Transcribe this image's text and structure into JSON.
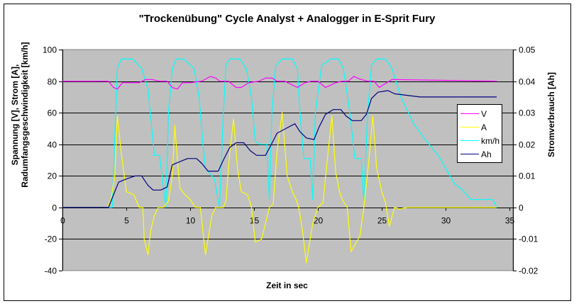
{
  "chart": {
    "title": "\"Trockenübung\" Cycle Analyst + Analogger in E-Sprit Fury",
    "ylabel_left_line1": "Spannung [V], Strom [A],",
    "ylabel_left_line2": "Radumfangsgeschwindigkeit [km/h]",
    "ylabel_right": "Stromverbrauch [Ah]",
    "xlabel": "Zeit in sec",
    "legend": [
      {
        "label": "V",
        "color": "#FF00FF"
      },
      {
        "label": "A",
        "color": "#FFFF00"
      },
      {
        "label": "km/h",
        "color": "#00FFFF"
      },
      {
        "label": "Ah",
        "color": "#000080"
      }
    ],
    "plot_background": "#C0C0C0"
  },
  "chart_data": {
    "type": "line",
    "title": "\"Trockenübung\" Cycle Analyst + Analogger in E-Sprit Fury",
    "xlabel": "Zeit in sec",
    "ylabel": "Spannung [V], Strom [A], Radumfangsgeschwindigkeit [km/h]",
    "y2label": "Stromverbrauch [Ah]",
    "xlim": [
      0,
      35
    ],
    "ylim": [
      -40,
      100
    ],
    "y2lim": [
      -0.02,
      0.05
    ],
    "xticks": [
      0,
      5,
      10,
      15,
      20,
      25,
      30,
      35
    ],
    "yticks": [
      -40,
      -20,
      0,
      20,
      40,
      60,
      80,
      100
    ],
    "y2ticks": [
      -0.02,
      -0.01,
      0,
      0.01,
      0.02,
      0.03,
      0.04,
      0.05
    ],
    "grid": "horizontal major lines",
    "legend_position": "right, inside plot",
    "series": [
      {
        "name": "V",
        "axis": "left",
        "color": "#FF00FF",
        "x": [
          0,
          3.6,
          4.0,
          4.3,
          4.7,
          5.2,
          6.0,
          6.5,
          7.0,
          7.6,
          8.2,
          8.6,
          9.0,
          9.4,
          10.0,
          10.9,
          11.6,
          12.0,
          12.3,
          13.0,
          13.6,
          14.0,
          14.6,
          15.4,
          15.9,
          16.4,
          16.8,
          17.4,
          18.4,
          19.0,
          19.5,
          20.0,
          20.6,
          21.4,
          21.9,
          22.4,
          22.8,
          23.4,
          23.9,
          24.4,
          24.8,
          25.4,
          25.8,
          34.0
        ],
        "values": [
          80,
          80,
          76,
          75,
          79,
          79,
          79,
          81,
          81,
          80,
          80,
          76,
          75,
          79,
          79,
          80,
          83,
          82,
          80,
          80,
          76,
          76,
          79,
          80,
          82,
          82,
          80,
          80,
          76,
          79,
          80,
          80,
          76,
          79,
          80,
          80,
          83,
          81,
          80,
          80,
          76,
          79,
          81,
          80
        ]
      },
      {
        "name": "A",
        "axis": "left",
        "color": "#FFFF00",
        "x": [
          0,
          3.5,
          3.8,
          4.1,
          4.3,
          4.6,
          5.0,
          5.6,
          6.0,
          6.3,
          6.4,
          6.7,
          6.9,
          7.2,
          7.5,
          7.9,
          8.3,
          8.6,
          8.8,
          9.0,
          9.2,
          9.6,
          10.0,
          10.4,
          10.8,
          11.2,
          11.4,
          11.7,
          12.0,
          12.6,
          12.8,
          13.1,
          13.4,
          13.7,
          14.0,
          14.5,
          14.8,
          15.1,
          15.6,
          16.2,
          16.5,
          16.8,
          17.2,
          17.6,
          18.0,
          18.3,
          18.5,
          18.8,
          19.1,
          19.6,
          20.0,
          20.4,
          20.8,
          21.1,
          21.4,
          21.7,
          21.9,
          22.3,
          22.6,
          23.3,
          23.6,
          24.0,
          24.3,
          24.6,
          25.0,
          25.3,
          25.6,
          26.0,
          26.4,
          27.0,
          28.0,
          34.0
        ],
        "values": [
          0,
          0,
          5,
          20,
          58,
          35,
          10,
          8,
          0,
          0,
          -20,
          -30,
          -15,
          -5,
          0,
          0,
          4,
          20,
          52,
          30,
          12,
          8,
          5,
          0,
          0,
          -30,
          -20,
          -5,
          0,
          0,
          4,
          35,
          56,
          25,
          10,
          8,
          0,
          -22,
          -20,
          0,
          2,
          35,
          60,
          20,
          10,
          5,
          0,
          -15,
          -35,
          -10,
          0,
          3,
          35,
          58,
          22,
          10,
          5,
          0,
          -28,
          -18,
          0,
          30,
          58,
          25,
          10,
          3,
          -12,
          0,
          -1,
          0,
          0,
          0
        ]
      },
      {
        "name": "km/h",
        "axis": "left",
        "color": "#00FFFF",
        "x": [
          0,
          3.9,
          4.1,
          4.3,
          4.6,
          5.5,
          6.2,
          6.7,
          7.2,
          7.6,
          8.1,
          8.3,
          8.6,
          8.9,
          9.5,
          10.3,
          10.7,
          11.0,
          11.2,
          11.5,
          11.9,
          12.3,
          12.6,
          12.8,
          13.1,
          13.9,
          14.4,
          14.8,
          15.1,
          15.4,
          16.0,
          16.2,
          16.4,
          16.7,
          17.2,
          18.0,
          18.4,
          18.6,
          18.9,
          19.4,
          19.6,
          19.8,
          20.3,
          21.0,
          21.6,
          22.0,
          22.5,
          22.9,
          23.4,
          23.6,
          23.9,
          24.2,
          24.6,
          25.3,
          25.8,
          26.5,
          27.5,
          28.5,
          29.5,
          30.2,
          30.7,
          31.2,
          32.0,
          32.6,
          33.7,
          34.0
        ],
        "values": [
          0,
          0,
          45,
          88,
          94,
          94,
          88,
          75,
          33,
          33,
          0,
          60,
          88,
          94,
          94,
          88,
          70,
          40,
          25,
          22,
          18,
          0,
          60,
          90,
          94,
          94,
          88,
          70,
          42,
          40,
          40,
          5,
          60,
          90,
          94,
          94,
          88,
          60,
          31,
          31,
          5,
          60,
          90,
          94,
          94,
          88,
          60,
          31,
          31,
          5,
          60,
          90,
          94,
          94,
          88,
          70,
          53,
          42,
          32,
          22,
          15,
          12,
          5,
          5,
          5,
          0
        ]
      },
      {
        "name": "Ah",
        "axis": "right",
        "color": "#000080",
        "x": [
          0,
          3.6,
          4.0,
          4.4,
          5.0,
          5.7,
          6.2,
          6.7,
          7.1,
          7.7,
          8.2,
          8.6,
          9.2,
          9.8,
          10.5,
          10.9,
          11.4,
          12.2,
          12.6,
          13.1,
          13.6,
          14.2,
          14.7,
          15.2,
          15.9,
          16.3,
          16.8,
          17.5,
          18.2,
          18.6,
          19.1,
          19.7,
          20.1,
          20.6,
          21.2,
          21.8,
          22.2,
          22.7,
          23.4,
          23.8,
          24.2,
          24.7,
          25.5,
          26.0,
          27.0,
          28.0,
          34.0
        ],
        "values": [
          0,
          0,
          0.004,
          0.008,
          0.009,
          0.01,
          0.01,
          0.007,
          0.0055,
          0.0055,
          0.0065,
          0.0135,
          0.0145,
          0.0155,
          0.0155,
          0.014,
          0.0115,
          0.0115,
          0.015,
          0.019,
          0.0205,
          0.0205,
          0.018,
          0.0165,
          0.0165,
          0.0195,
          0.0235,
          0.025,
          0.0265,
          0.024,
          0.022,
          0.0215,
          0.0255,
          0.0295,
          0.031,
          0.031,
          0.029,
          0.0275,
          0.0275,
          0.0295,
          0.0345,
          0.0365,
          0.037,
          0.036,
          0.0355,
          0.035,
          0.035
        ]
      }
    ]
  }
}
